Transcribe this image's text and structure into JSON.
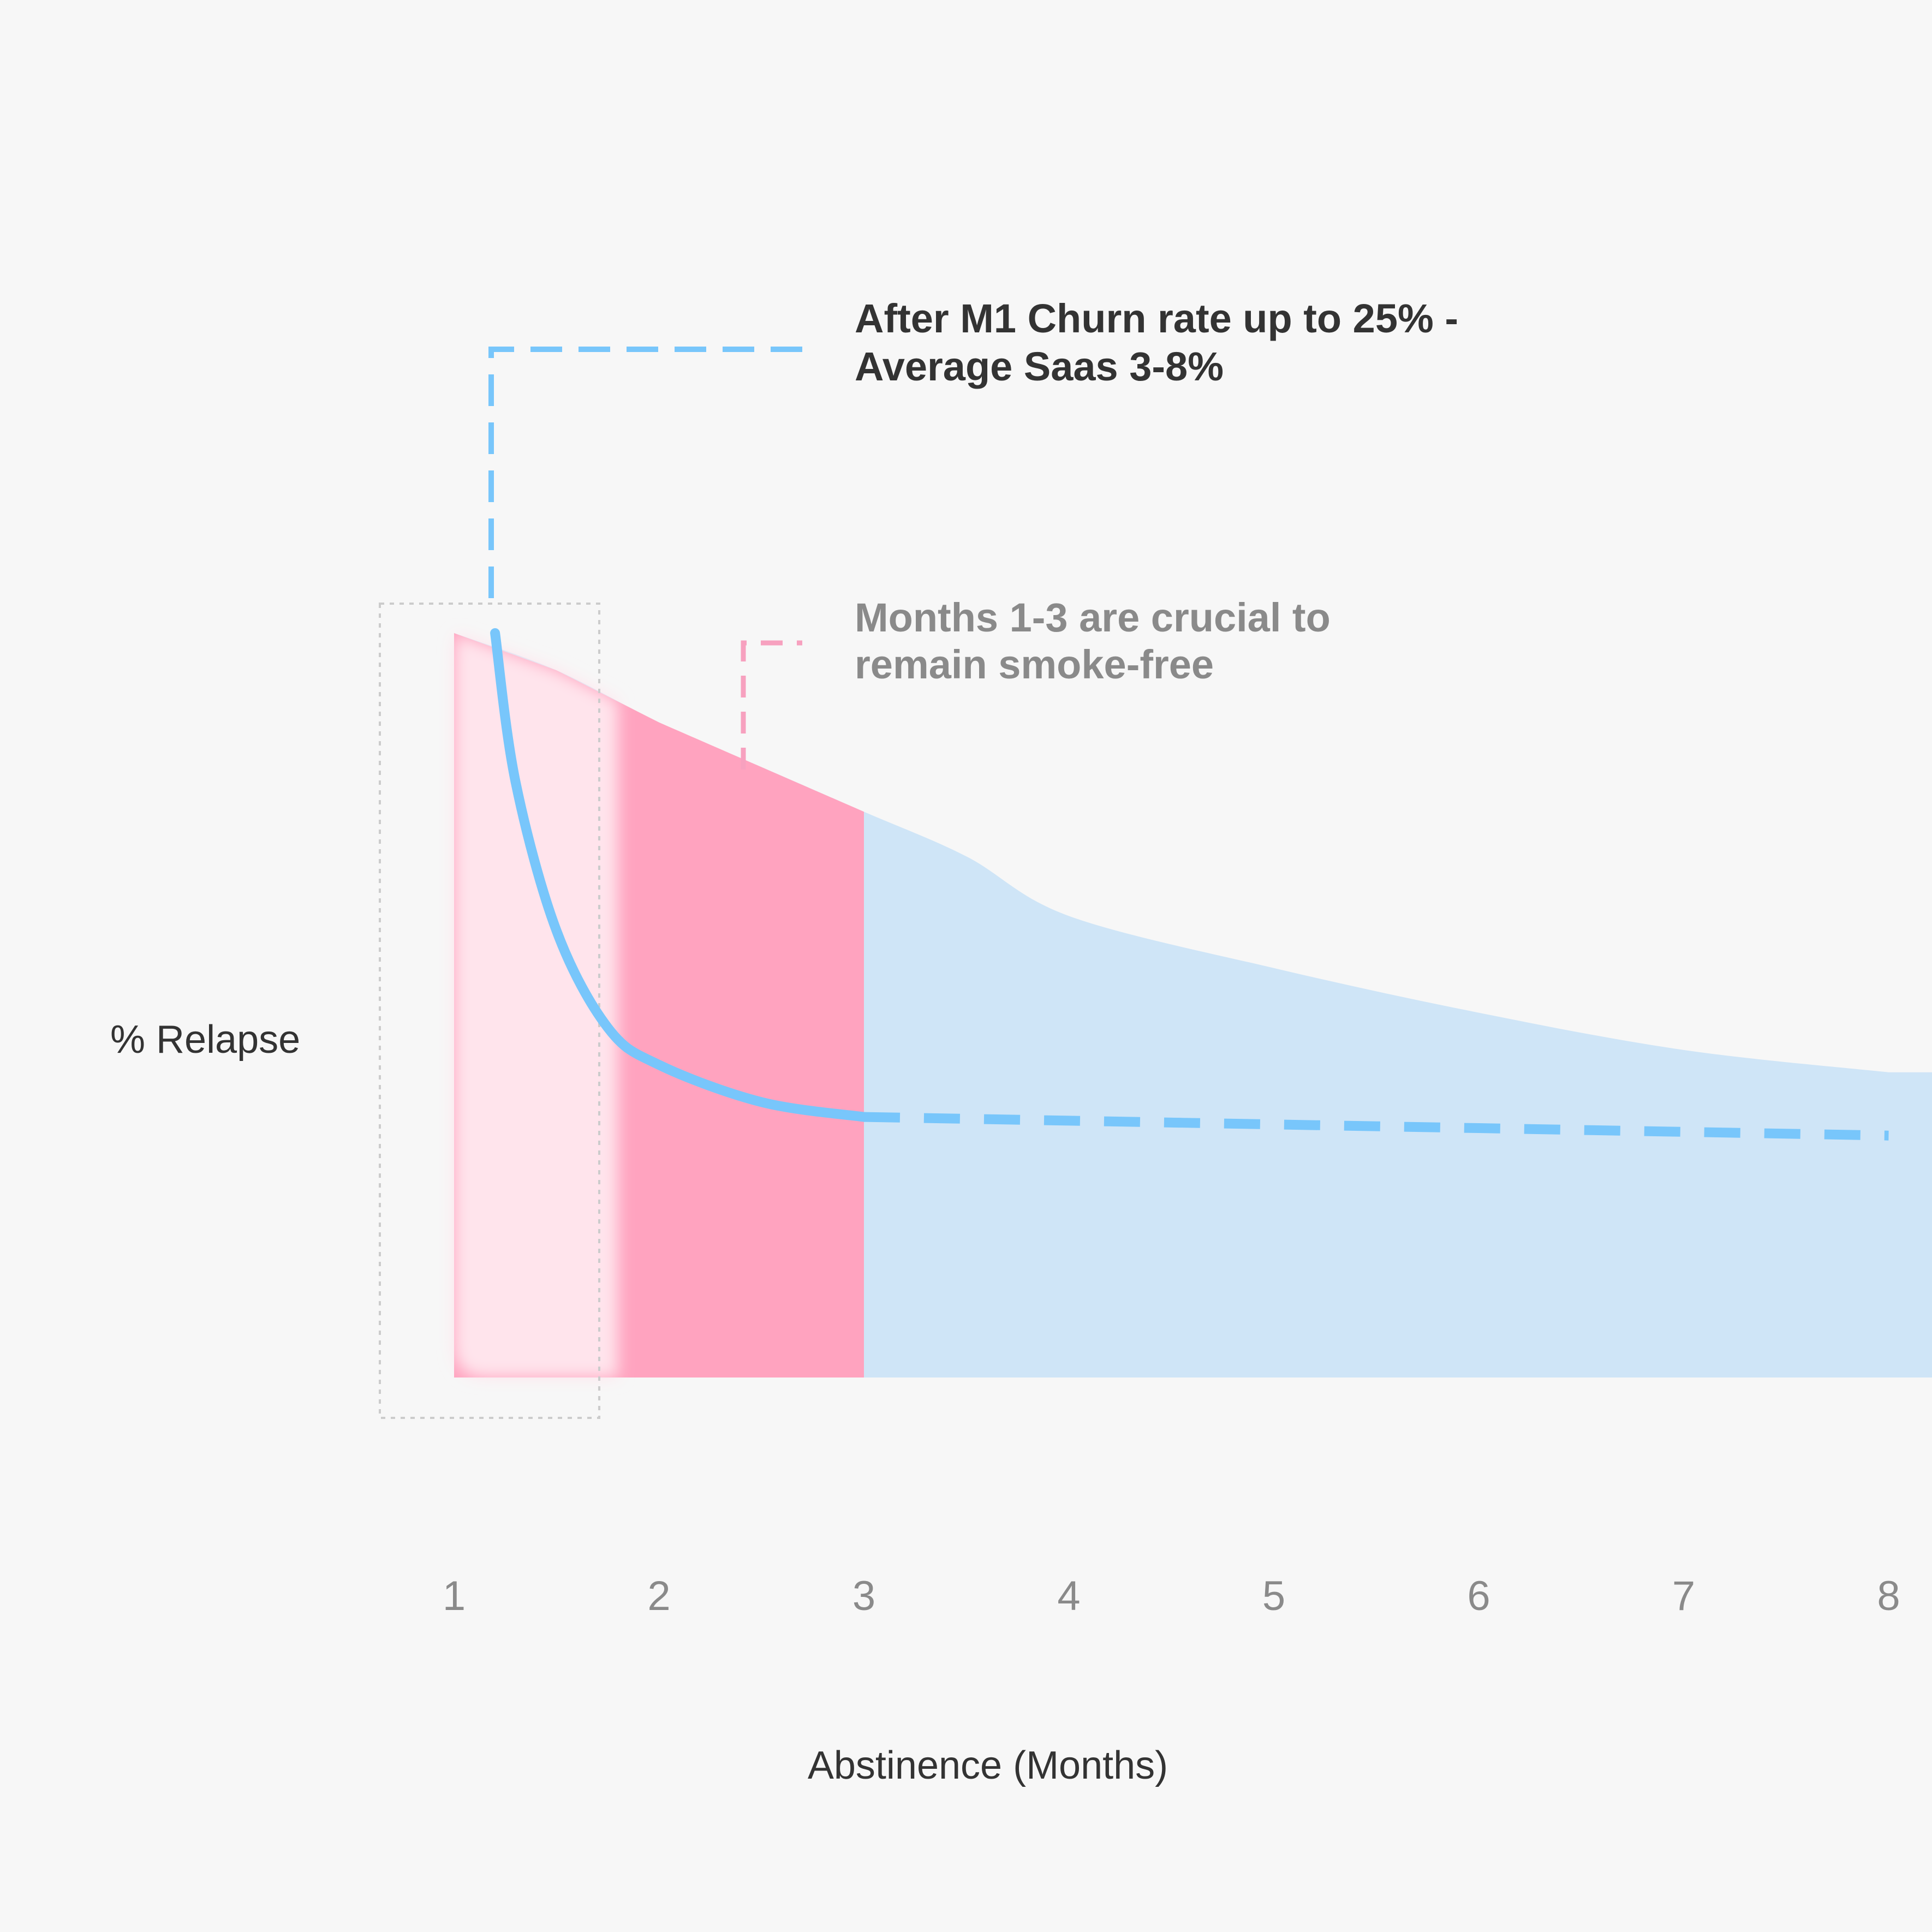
{
  "chart_data": {
    "type": "area",
    "title": "",
    "xlabel": "Abstinence (Months)",
    "ylabel": "% Relapse",
    "x_ticks": [
      "1",
      "2",
      "3",
      "4",
      "5",
      "6",
      "7",
      "8"
    ],
    "xlim": [
      1,
      8
    ],
    "grid": false,
    "legend": "none",
    "annotations": [
      {
        "lines": [
          "After M1 Churn rate up to 25% -",
          "Average Saas 3-8%"
        ],
        "color": "#78c6fb",
        "style": "bold-dark"
      },
      {
        "lines": [
          "Months 1-3 are crucial to",
          "remain smoke-free"
        ],
        "color": "#f7a1bf",
        "style": "bold-grey"
      }
    ],
    "series": [
      {
        "kind": "area",
        "color": "#cfe5f7",
        "highlight_band": {
          "from": 1,
          "to": 3,
          "color": "#ffa3bf"
        },
        "faded_band": {
          "from": 1,
          "to": 1.8,
          "color": "#ffe4ec"
        },
        "x": [
          1.0,
          1.5,
          2.0,
          2.5,
          3.0,
          3.5,
          4.0,
          5.0,
          6.0,
          7.0,
          8.0
        ],
        "y": [
          100,
          95,
          88,
          82,
          76,
          70,
          62,
          55,
          49,
          44,
          41
        ]
      },
      {
        "kind": "line",
        "color": "#78c6fb",
        "dash_after": 3.0,
        "x": [
          1.2,
          1.3,
          1.5,
          1.75,
          2.0,
          2.5,
          3.0,
          4.0,
          5.0,
          6.0,
          7.0,
          8.0
        ],
        "y": [
          100,
          80,
          60,
          47,
          42,
          37,
          35,
          34.5,
          34,
          33.5,
          33,
          32.5
        ]
      }
    ]
  }
}
